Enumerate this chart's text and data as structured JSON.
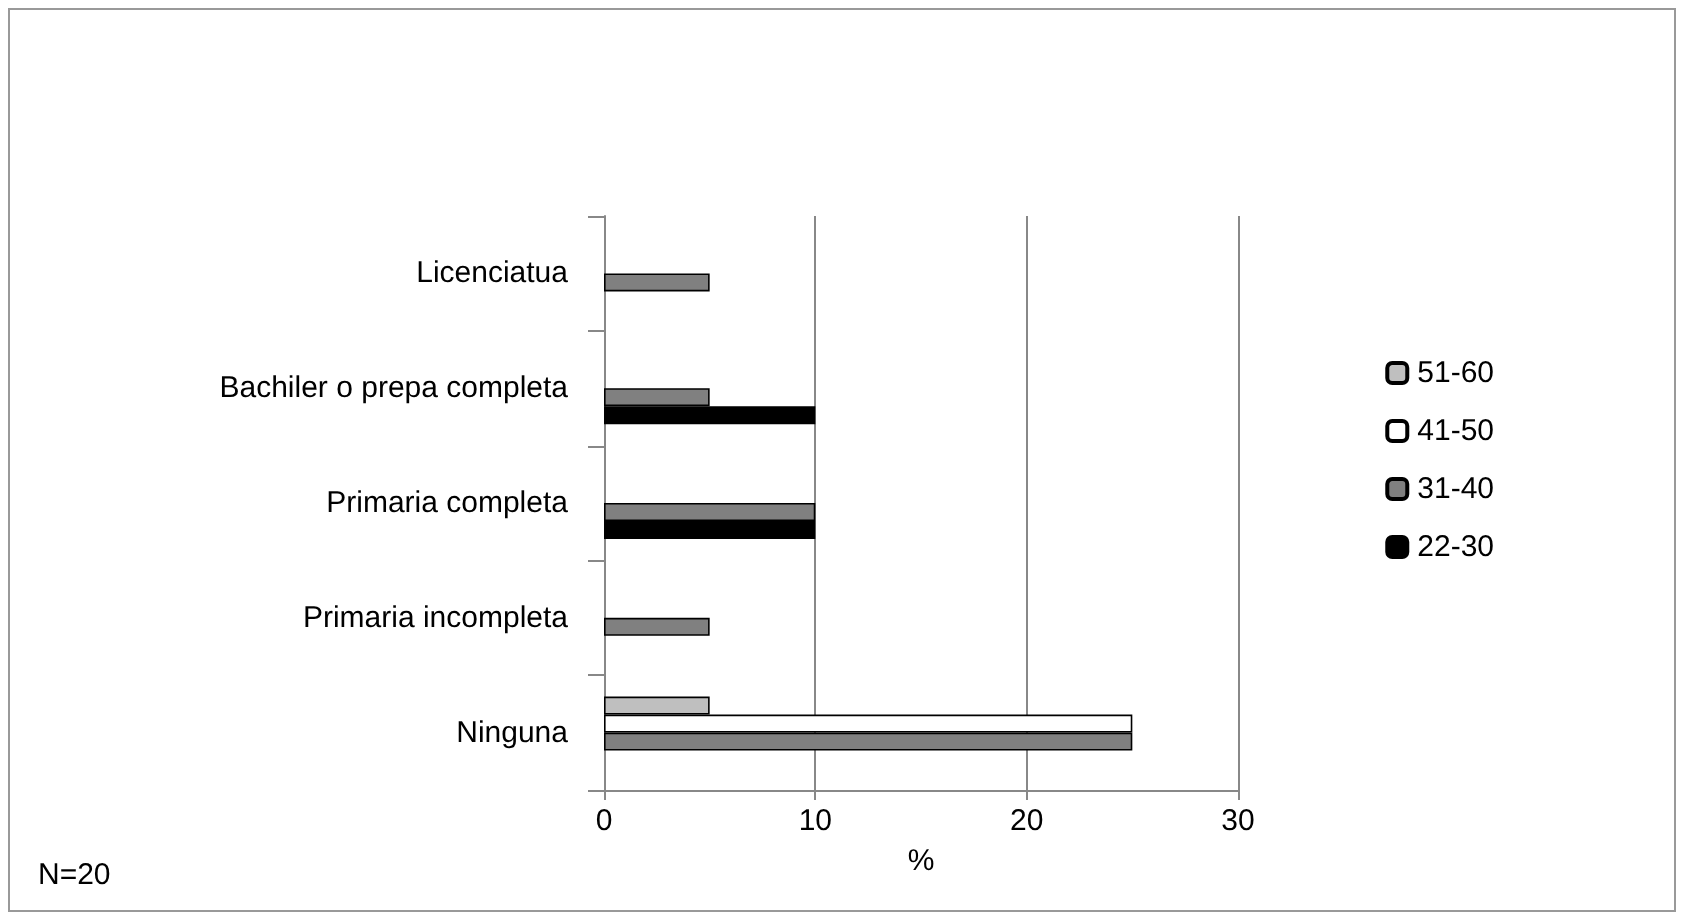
{
  "chart_data": {
    "type": "bar",
    "orientation": "horizontal",
    "xlabel": "%",
    "categories": [
      "Licenciatua",
      "Bachiler o prepa completa",
      "Primaria completa",
      "Primaria incompleta",
      "Ninguna"
    ],
    "series": [
      {
        "name": "51-60",
        "color": "#bfbfbf",
        "values": [
          null,
          null,
          null,
          null,
          5
        ]
      },
      {
        "name": "41-50",
        "color": "#ffffff",
        "values": [
          null,
          null,
          null,
          null,
          25
        ]
      },
      {
        "name": "31-40",
        "color": "#808080",
        "values": [
          5,
          5,
          10,
          5,
          25
        ]
      },
      {
        "name": "22-30",
        "color": "#000000",
        "values": [
          null,
          10,
          10,
          null,
          null
        ]
      }
    ],
    "xlim": [
      0,
      30
    ],
    "xticks": [
      0,
      10,
      20,
      30
    ],
    "grid": "x",
    "legend": "right",
    "annotations": [
      "N=20"
    ]
  }
}
